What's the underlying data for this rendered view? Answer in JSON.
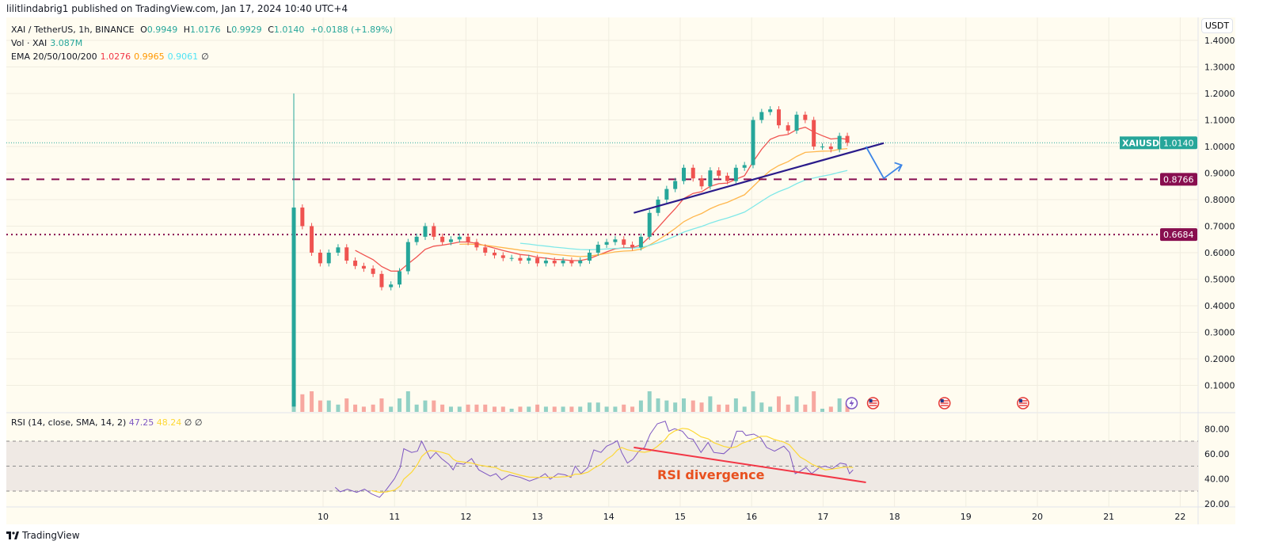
{
  "header": {
    "published": "lilitlindabrig1 published on TradingView.com, Jan 17, 2024 10:40 UTC+4"
  },
  "legend": {
    "symbol": "XAI / TetherUS, 1h, BINANCE",
    "o_label": "O",
    "o": "0.9949",
    "h_label": "H",
    "h": "1.0176",
    "l_label": "L",
    "l": "0.9929",
    "c_label": "C",
    "c": "1.0140",
    "change": "+0.0188 (+1.89%)",
    "vol_label": "Vol · XAI",
    "vol": "3.087M",
    "ema_label": "EMA 20/50/100/200",
    "ema20": "1.0276",
    "ema50": "0.9965",
    "ema100": "0.9061",
    "ema_na": "∅",
    "rsi_label": "RSI (14, close, SMA, 14, 2)",
    "rsi": "47.25",
    "rsi_sma": "48.24",
    "rsi_na1": "∅",
    "rsi_na2": "∅"
  },
  "currency": "USDT",
  "footer": {
    "brand": "TradingView"
  },
  "colors": {
    "up": "#26a69a",
    "down": "#ef5350",
    "ema20": "#f05350",
    "ema50": "#ffb74d",
    "ema100": "#7fe8e8",
    "rsi": "#7e57c2",
    "rsi_sma": "#fdd835",
    "level": "#880e4f",
    "trend": "#2a1b8a",
    "arrow": "#3d85e6",
    "divergence": "#e8501e"
  },
  "chart_data": {
    "type": "candlestick",
    "x_ticks": [
      "10",
      "11",
      "12",
      "13",
      "14",
      "15",
      "16",
      "17",
      "18",
      "19",
      "20",
      "21",
      "22"
    ],
    "y_ticks": [
      "0.1000",
      "0.2000",
      "0.3000",
      "0.4000",
      "0.5000",
      "0.6000",
      "0.7000",
      "0.8000",
      "0.9000",
      "1.0000",
      "1.1000",
      "1.2000",
      "1.3000",
      "1.4000"
    ],
    "ylim": [
      0.0,
      1.42
    ],
    "first_bar": {
      "open": 0.02,
      "high": 1.2,
      "close": 0.77
    },
    "closes": [
      [
        9.59,
        0.77
      ],
      [
        9.71,
        0.7
      ],
      [
        9.84,
        0.6
      ],
      [
        9.96,
        0.56
      ],
      [
        10.08,
        0.6
      ],
      [
        10.21,
        0.62
      ],
      [
        10.33,
        0.57
      ],
      [
        10.45,
        0.55
      ],
      [
        10.57,
        0.54
      ],
      [
        10.7,
        0.52
      ],
      [
        10.82,
        0.47
      ],
      [
        10.95,
        0.48
      ],
      [
        11.07,
        0.53
      ],
      [
        11.19,
        0.64
      ],
      [
        11.31,
        0.66
      ],
      [
        11.43,
        0.7
      ],
      [
        11.55,
        0.66
      ],
      [
        11.67,
        0.64
      ],
      [
        11.79,
        0.65
      ],
      [
        11.91,
        0.66
      ],
      [
        12.03,
        0.64
      ],
      [
        12.15,
        0.62
      ],
      [
        12.27,
        0.6
      ],
      [
        12.4,
        0.59
      ],
      [
        12.52,
        0.58
      ],
      [
        12.64,
        0.58
      ],
      [
        12.76,
        0.57
      ],
      [
        12.88,
        0.58
      ],
      [
        13.0,
        0.56
      ],
      [
        13.12,
        0.57
      ],
      [
        13.24,
        0.56
      ],
      [
        13.36,
        0.57
      ],
      [
        13.48,
        0.56
      ],
      [
        13.6,
        0.57
      ],
      [
        13.73,
        0.6
      ],
      [
        13.85,
        0.63
      ],
      [
        13.97,
        0.64
      ],
      [
        14.09,
        0.65
      ],
      [
        14.21,
        0.63
      ],
      [
        14.33,
        0.62
      ],
      [
        14.45,
        0.66
      ],
      [
        14.57,
        0.75
      ],
      [
        14.69,
        0.8
      ],
      [
        14.81,
        0.84
      ],
      [
        14.93,
        0.87
      ],
      [
        15.05,
        0.92
      ],
      [
        15.18,
        0.88
      ],
      [
        15.3,
        0.85
      ],
      [
        15.42,
        0.91
      ],
      [
        15.54,
        0.89
      ],
      [
        15.66,
        0.87
      ],
      [
        15.78,
        0.92
      ],
      [
        15.9,
        0.93
      ],
      [
        16.02,
        1.1
      ],
      [
        16.14,
        1.13
      ],
      [
        16.26,
        1.14
      ],
      [
        16.38,
        1.08
      ],
      [
        16.51,
        1.06
      ],
      [
        16.63,
        1.12
      ],
      [
        16.75,
        1.1
      ],
      [
        16.87,
        1.0
      ],
      [
        16.99,
        1.0
      ],
      [
        17.11,
        0.99
      ],
      [
        17.23,
        1.04
      ],
      [
        17.34,
        1.014
      ]
    ],
    "price_labels": [
      {
        "text": "XAIUSDT",
        "value": "1.0140",
        "price": 1.014,
        "kind": "last"
      },
      {
        "value": "0.8766",
        "price": 0.8766,
        "kind": "dashed"
      },
      {
        "value": "0.6684",
        "price": 0.6684,
        "kind": "dotted"
      }
    ],
    "trendline": {
      "from": [
        14.35,
        0.75
      ],
      "to": [
        17.85,
        1.013
      ]
    },
    "projection_arrow": [
      [
        17.6,
        1.0
      ],
      [
        17.85,
        0.88
      ],
      [
        18.1,
        0.93
      ]
    ],
    "rsi": {
      "ylim": [
        14,
        92
      ],
      "bands": [
        30,
        50,
        70
      ],
      "y_ticks": [
        "20.00",
        "40.00",
        "60.00",
        "80.00"
      ],
      "values": [
        [
          10.17,
          33
        ],
        [
          10.24,
          29.4
        ],
        [
          10.34,
          31.5
        ],
        [
          10.47,
          29
        ],
        [
          10.58,
          31.5
        ],
        [
          10.68,
          27.7
        ],
        [
          10.79,
          25
        ],
        [
          10.89,
          31.5
        ],
        [
          11.0,
          40
        ],
        [
          11.08,
          49
        ],
        [
          11.13,
          64
        ],
        [
          11.24,
          61
        ],
        [
          11.32,
          62
        ],
        [
          11.38,
          70
        ],
        [
          11.45,
          62
        ],
        [
          11.5,
          56
        ],
        [
          11.58,
          61
        ],
        [
          11.66,
          56
        ],
        [
          11.76,
          51.5
        ],
        [
          11.82,
          47
        ],
        [
          11.87,
          52.5
        ],
        [
          11.97,
          51.5
        ],
        [
          12.08,
          56
        ],
        [
          12.18,
          47
        ],
        [
          12.34,
          42
        ],
        [
          12.42,
          44
        ],
        [
          12.5,
          39
        ],
        [
          12.61,
          43
        ],
        [
          12.76,
          41
        ],
        [
          12.89,
          38
        ],
        [
          13.03,
          41
        ],
        [
          13.11,
          44
        ],
        [
          13.18,
          39.5
        ],
        [
          13.29,
          44
        ],
        [
          13.39,
          43
        ],
        [
          13.47,
          41
        ],
        [
          13.53,
          50
        ],
        [
          13.61,
          44
        ],
        [
          13.71,
          49
        ],
        [
          13.79,
          63
        ],
        [
          13.89,
          61
        ],
        [
          13.97,
          66
        ],
        [
          14.05,
          68
        ],
        [
          14.12,
          70.4
        ],
        [
          14.18,
          61
        ],
        [
          14.26,
          52.5
        ],
        [
          14.34,
          55.7
        ],
        [
          14.42,
          62
        ],
        [
          14.5,
          65
        ],
        [
          14.58,
          75.7
        ],
        [
          14.68,
          84
        ],
        [
          14.79,
          86
        ],
        [
          14.84,
          78
        ],
        [
          14.92,
          80
        ],
        [
          15.03,
          78
        ],
        [
          15.11,
          72.5
        ],
        [
          15.18,
          71.5
        ],
        [
          15.29,
          61
        ],
        [
          15.39,
          69
        ],
        [
          15.47,
          61
        ],
        [
          15.61,
          60
        ],
        [
          15.71,
          65
        ],
        [
          15.79,
          78
        ],
        [
          15.87,
          78
        ],
        [
          15.92,
          74.6
        ],
        [
          16.03,
          75.7
        ],
        [
          16.13,
          72.5
        ],
        [
          16.21,
          65
        ],
        [
          16.32,
          62
        ],
        [
          16.45,
          66
        ],
        [
          16.53,
          61
        ],
        [
          16.61,
          44
        ],
        [
          16.68,
          46
        ],
        [
          16.76,
          49
        ],
        [
          16.84,
          44
        ],
        [
          16.95,
          49
        ],
        [
          17.03,
          50
        ],
        [
          17.13,
          48
        ],
        [
          17.24,
          52.5
        ],
        [
          17.32,
          51.5
        ],
        [
          17.37,
          44
        ],
        [
          17.42,
          47
        ]
      ],
      "divergence_line": {
        "from": [
          14.35,
          65
        ],
        "to": [
          17.6,
          37
        ]
      },
      "annotation": "RSI divergence"
    },
    "events": [
      {
        "day": 17.4,
        "icon": "lightning-icon"
      },
      {
        "day": 17.7,
        "icon": "us-flag-icon"
      },
      {
        "day": 18.7,
        "icon": "us-flag-icon"
      },
      {
        "day": 19.8,
        "icon": "us-flag-icon"
      }
    ]
  }
}
